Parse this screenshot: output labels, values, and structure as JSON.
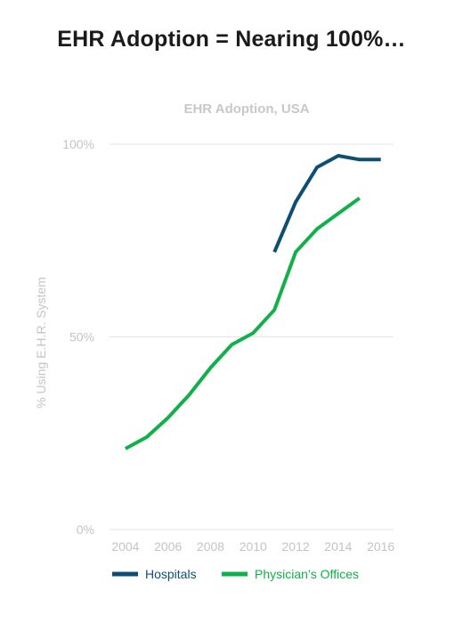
{
  "page": {
    "headline": "EHR Adoption = Nearing 100%…"
  },
  "chart_data": {
    "type": "line",
    "title": "EHR Adoption, USA",
    "xlabel": "",
    "ylabel": "% Using E.H.R. System",
    "xlim": [
      2003.25,
      2016.6
    ],
    "ylim": [
      0,
      100
    ],
    "x_ticks": [
      2004,
      2006,
      2008,
      2010,
      2012,
      2014,
      2016
    ],
    "x_tick_labels": [
      "2004",
      "2006",
      "2008",
      "2010",
      "2012",
      "2014",
      "2016"
    ],
    "y_ticks": [
      0,
      50,
      100
    ],
    "y_tick_labels": [
      "0%",
      "50%",
      "100%"
    ],
    "grid": true,
    "legend_position": "bottom",
    "series": [
      {
        "name": "Hospitals",
        "color": "#0d4f72",
        "x": [
          2011,
          2012,
          2013,
          2014,
          2015,
          2016
        ],
        "y": [
          72,
          85,
          94,
          97,
          96,
          96
        ]
      },
      {
        "name": "Physician’s Offices",
        "color": "#12b04a",
        "x": [
          2004,
          2005,
          2006,
          2007,
          2008,
          2009,
          2010,
          2011,
          2012,
          2013,
          2014,
          2015
        ],
        "y": [
          21,
          24,
          29,
          35,
          42,
          48,
          51,
          57,
          72,
          78,
          82,
          86
        ]
      }
    ]
  }
}
